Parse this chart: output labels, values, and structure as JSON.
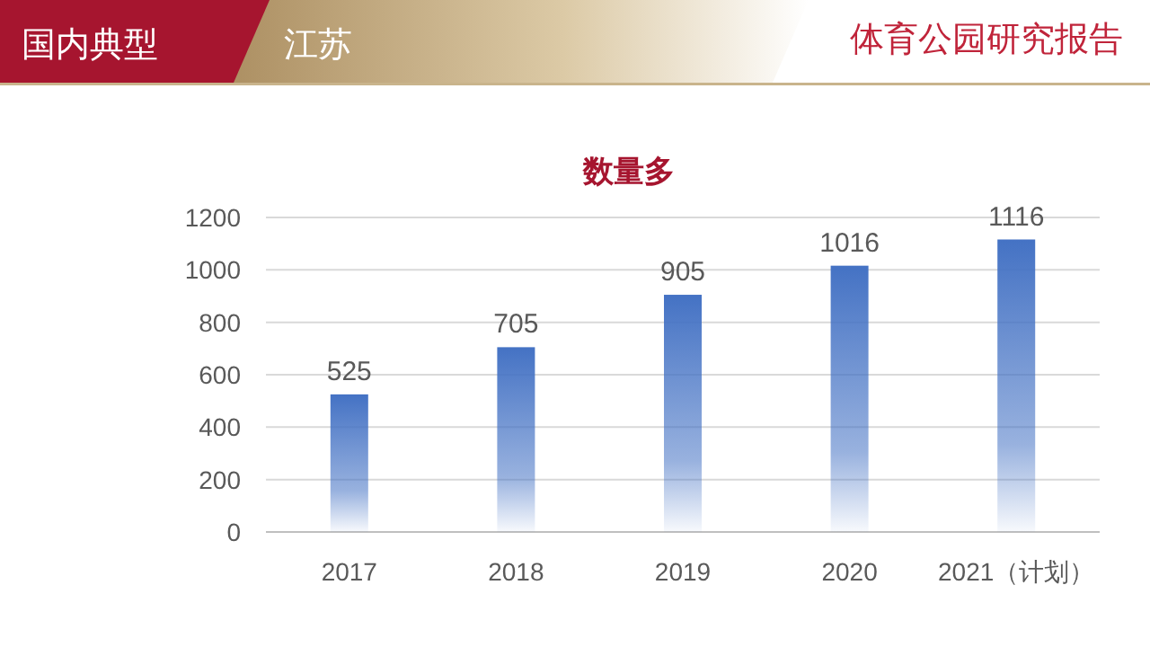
{
  "chart_data": {
    "type": "bar",
    "title": "数量多",
    "annotations": [
      "国内典型",
      "江苏",
      "体育公园研究报告"
    ],
    "categories": [
      "2017",
      "2018",
      "2019",
      "2020",
      "2021（计划）"
    ],
    "values": [
      525,
      705,
      905,
      1016,
      1116
    ],
    "color": "#4472c4",
    "ylim": [
      0,
      1200
    ],
    "yticks": [
      0,
      200,
      400,
      600,
      800,
      1000,
      1200
    ],
    "grid": "y",
    "data_labels": true
  }
}
